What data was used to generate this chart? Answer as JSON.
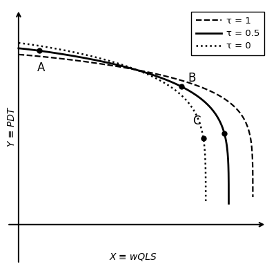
{
  "title": "",
  "xlabel": "X ≡ wQLS",
  "ylabel": "Y ≡ PDT",
  "legend": [
    {
      "label": "τ = 1",
      "linestyle": "--"
    },
    {
      "label": "τ = 0.5",
      "linestyle": "-"
    },
    {
      "label": "τ = 0",
      "linestyle": ":"
    }
  ],
  "color": "black",
  "background": "white",
  "xlim": [
    -0.06,
    1.1
  ],
  "ylim": [
    -0.18,
    0.95
  ]
}
